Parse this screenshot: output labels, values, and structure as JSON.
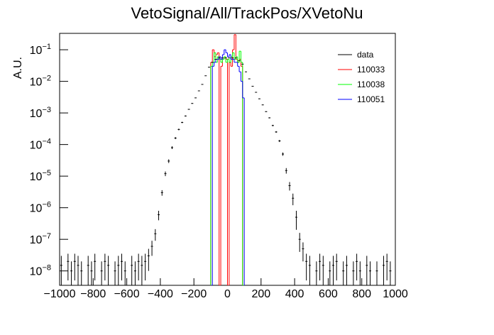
{
  "chart_data": {
    "type": "histogram",
    "title": "VetoSignal/All/TrackPos/XVetoNu",
    "y_label": "A.U.",
    "log_y": true,
    "legend": "top-right",
    "xlim": [
      -1000,
      1000
    ],
    "xticks": [
      -1000,
      -800,
      -600,
      -400,
      -200,
      0,
      200,
      400,
      600,
      800,
      1000
    ],
    "ylim": [
      3.5e-09,
      0.33
    ],
    "yticks": [
      {
        "value": 1e-08,
        "label": "10^-8"
      },
      {
        "value": 1e-07,
        "label": "10^-7"
      },
      {
        "value": 1e-06,
        "label": "10^-6"
      },
      {
        "value": 1e-05,
        "label": "10^-5"
      },
      {
        "value": 0.0001,
        "label": "10^-4"
      },
      {
        "value": 0.001,
        "label": "10^-3"
      },
      {
        "value": 0.01,
        "label": "10^-2"
      },
      {
        "value": 0.1,
        "label": "10^-1"
      }
    ],
    "points": {
      "name": "data",
      "color": "#000000",
      "x": [
        -990,
        -970,
        -950,
        -930,
        -910,
        -890,
        -870,
        -850,
        -830,
        -810,
        -790,
        -770,
        -750,
        -730,
        -710,
        -690,
        -670,
        -650,
        -630,
        -610,
        -590,
        -570,
        -550,
        -530,
        -510,
        -490,
        -470,
        -450,
        -430,
        -410,
        -390,
        -370,
        -350,
        -330,
        -310,
        -290,
        -270,
        -250,
        -230,
        -210,
        -190,
        -170,
        -150,
        -130,
        -110,
        -90,
        -70,
        -50,
        -30,
        -10,
        10,
        30,
        50,
        70,
        90,
        110,
        130,
        150,
        170,
        190,
        210,
        230,
        250,
        270,
        290,
        310,
        330,
        350,
        370,
        390,
        410,
        430,
        450,
        470,
        490,
        510,
        530,
        550,
        570,
        590,
        610,
        630,
        650,
        670,
        690,
        710,
        730,
        750,
        770,
        790,
        810,
        830,
        850,
        870,
        890,
        910,
        930,
        950,
        970,
        990
      ],
      "values": [
        1.5e-08,
        null,
        2e-08,
        1e-08,
        2e-08,
        1.5e-08,
        1e-08,
        null,
        1.5e-08,
        1e-08,
        2e-08,
        null,
        1e-08,
        2e-08,
        1.5e-08,
        null,
        1e-08,
        1.5e-08,
        2e-08,
        1e-08,
        null,
        1.5e-08,
        1e-08,
        2e-08,
        1.5e-08,
        2e-08,
        3e-08,
        6e-08,
        1.5e-07,
        6e-07,
        3e-06,
        1.2e-05,
        3e-05,
        8e-05,
        0.00016,
        0.0003,
        0.0005,
        0.0008,
        0.0013,
        0.002,
        0.003,
        0.005,
        0.008,
        0.015,
        0.028,
        0.04,
        0.05,
        0.055,
        0.055,
        0.055,
        0.055,
        0.055,
        0.055,
        0.045,
        0.035,
        0.02,
        0.012,
        0.007,
        0.0045,
        0.0028,
        0.0018,
        0.0011,
        0.0007,
        0.0004,
        0.00025,
        0.00013,
        5e-05,
        1.5e-05,
        5e-06,
        2e-06,
        5e-07,
        1e-07,
        5e-08,
        2e-08,
        1.5e-08,
        null,
        1e-08,
        2e-08,
        1.5e-08,
        null,
        1e-08,
        1.5e-08,
        2e-08,
        null,
        1e-08,
        1.5e-08,
        null,
        1e-08,
        2e-08,
        1e-08,
        null,
        1.5e-08,
        1e-08,
        null,
        1e-08,
        null,
        1.5e-08,
        2e-08,
        1e-08,
        null
      ],
      "errors": [
        1.5e-08,
        null,
        1.5e-08,
        1e-08,
        1.5e-08,
        1.5e-08,
        1e-08,
        null,
        1.5e-08,
        1e-08,
        1.5e-08,
        null,
        1e-08,
        1.5e-08,
        1.5e-08,
        null,
        1e-08,
        1.5e-08,
        1.5e-08,
        1e-08,
        null,
        1.5e-08,
        1e-08,
        1.5e-08,
        1.5e-08,
        1.5e-08,
        2e-08,
        3e-08,
        6e-08,
        2e-07,
        6e-07,
        2e-06,
        4e-06,
        8e-06,
        1.2e-05,
        1.8e-05,
        2.5e-05,
        3e-05,
        4e-05,
        5e-05,
        6e-05,
        8e-05,
        0.0001,
        0.00013,
        0.00018,
        0.0002,
        0.00022,
        0.00023,
        0.00023,
        0.00023,
        0.00023,
        0.00023,
        0.00023,
        0.00021,
        0.00019,
        0.00014,
        0.00011,
        8e-05,
        7e-05,
        5e-05,
        4e-05,
        3e-05,
        2.5e-05,
        2e-05,
        1.5e-05,
        1e-05,
        6e-06,
        3e-06,
        1.5e-06,
        8e-07,
        3e-07,
        6e-08,
        3e-08,
        1.5e-08,
        1.5e-08,
        null,
        1e-08,
        1.5e-08,
        1.5e-08,
        null,
        1e-08,
        1.5e-08,
        1.5e-08,
        null,
        1e-08,
        1.5e-08,
        null,
        1e-08,
        1.5e-08,
        1e-08,
        null,
        1.5e-08,
        1e-08,
        null,
        1e-08,
        null,
        1.5e-08,
        1.5e-08,
        1e-08,
        null
      ]
    },
    "bins": [
      -100,
      -90,
      -80,
      -70,
      -60,
      -50,
      -40,
      -30,
      -20,
      -10,
      0,
      10,
      20,
      30,
      40,
      50,
      60,
      70,
      80,
      90,
      100
    ],
    "series": [
      {
        "name": "110033",
        "color": "#ff0000",
        "values": [
          0.04,
          0.1,
          0.06,
          0.07,
          0.08,
          0,
          0.03,
          0.05,
          0.06,
          0.05,
          0,
          0.04,
          0.03,
          0.1,
          0.3,
          0.05,
          0.04,
          0.05,
          0.03,
          0
        ]
      },
      {
        "name": "110038",
        "color": "#00ff00",
        "values": [
          0.03,
          0.04,
          0.08,
          0.04,
          0.06,
          0.05,
          0.04,
          0.05,
          0.06,
          0.04,
          0.05,
          0.04,
          0.06,
          0.08,
          0.05,
          0.06,
          0.04,
          0.09,
          0.04,
          0
        ]
      },
      {
        "name": "110051",
        "color": "#0000ff",
        "values": [
          0,
          0.03,
          0.04,
          0.05,
          0.05,
          0.06,
          0.05,
          0.07,
          0.1,
          0.08,
          0.06,
          0.07,
          0.05,
          0.05,
          0.04,
          0.04,
          0.03,
          0.02,
          0.01,
          0.003
        ]
      }
    ]
  }
}
